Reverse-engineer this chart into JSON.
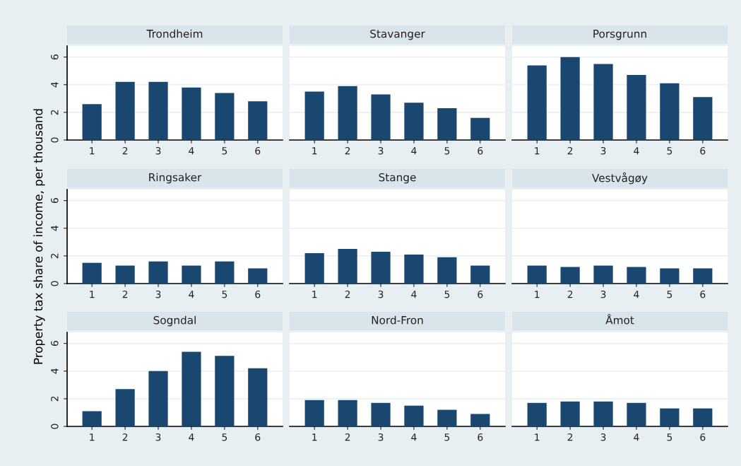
{
  "chart_data": [
    {
      "type": "bar",
      "title": "Trondheim",
      "categories": [
        "1",
        "2",
        "3",
        "4",
        "5",
        "6"
      ],
      "values": [
        2.6,
        4.2,
        4.2,
        3.8,
        3.4,
        2.8
      ],
      "color": "#1a476f",
      "ylim": [
        0,
        6.8
      ],
      "yticks": [
        0,
        2,
        4,
        6
      ],
      "grid": "y"
    },
    {
      "type": "bar",
      "title": "Stavanger",
      "categories": [
        "1",
        "2",
        "3",
        "4",
        "5",
        "6"
      ],
      "values": [
        3.5,
        3.9,
        3.3,
        2.7,
        2.3,
        1.6
      ],
      "color": "#1a476f",
      "ylim": [
        0,
        6.8
      ],
      "yticks": [
        0,
        2,
        4,
        6
      ],
      "grid": "y",
      "tick_labels": "x"
    },
    {
      "type": "bar",
      "title": "Porsgrunn",
      "categories": [
        "1",
        "2",
        "3",
        "4",
        "5",
        "6"
      ],
      "values": [
        5.4,
        6.0,
        5.5,
        4.7,
        4.1,
        3.1
      ],
      "color": "#1a476f",
      "ylim": [
        0,
        6.8
      ],
      "yticks": [
        0,
        2,
        4,
        6
      ],
      "grid": "y",
      "tick_labels": "x"
    },
    {
      "type": "bar",
      "title": "Ringsaker",
      "ylabel": "Property tax share of income, per thousand",
      "categories": [
        "1",
        "2",
        "3",
        "4",
        "5",
        "6"
      ],
      "values": [
        1.5,
        1.3,
        1.6,
        1.3,
        1.6,
        1.1
      ],
      "color": "#1a476f",
      "ylim": [
        0,
        6.8
      ],
      "yticks": [
        0,
        2,
        4,
        6
      ],
      "grid": "y"
    },
    {
      "type": "bar",
      "title": "Stange",
      "categories": [
        "1",
        "2",
        "3",
        "4",
        "5",
        "6"
      ],
      "values": [
        2.2,
        2.5,
        2.3,
        2.1,
        1.9,
        1.3
      ],
      "color": "#1a476f",
      "ylim": [
        0,
        6.8
      ],
      "yticks": [
        0,
        2,
        4,
        6
      ],
      "grid": "y",
      "tick_labels": "x"
    },
    {
      "type": "bar",
      "title": "Vestvågøy",
      "categories": [
        "1",
        "2",
        "3",
        "4",
        "5",
        "6"
      ],
      "values": [
        1.3,
        1.2,
        1.3,
        1.2,
        1.1,
        1.1
      ],
      "color": "#1a476f",
      "ylim": [
        0,
        6.8
      ],
      "yticks": [
        0,
        2,
        4,
        6
      ],
      "grid": "y",
      "tick_labels": "x"
    },
    {
      "type": "bar",
      "title": "Sogndal",
      "categories": [
        "1",
        "2",
        "3",
        "4",
        "5",
        "6"
      ],
      "values": [
        1.1,
        2.7,
        4.0,
        5.4,
        5.1,
        4.2
      ],
      "color": "#1a476f",
      "ylim": [
        0,
        6.8
      ],
      "yticks": [
        0,
        2,
        4,
        6
      ],
      "grid": "y"
    },
    {
      "type": "bar",
      "title": "Nord-Fron",
      "categories": [
        "1",
        "2",
        "3",
        "4",
        "5",
        "6"
      ],
      "values": [
        1.9,
        1.9,
        1.7,
        1.5,
        1.2,
        0.9
      ],
      "color": "#1a476f",
      "ylim": [
        0,
        6.8
      ],
      "yticks": [
        0,
        2,
        4,
        6
      ],
      "grid": "y",
      "tick_labels": "x"
    },
    {
      "type": "bar",
      "title": "Åmot",
      "categories": [
        "1",
        "2",
        "3",
        "4",
        "5",
        "6"
      ],
      "values": [
        1.7,
        1.8,
        1.8,
        1.7,
        1.3,
        1.3
      ],
      "color": "#1a476f",
      "ylim": [
        0,
        6.8
      ],
      "yticks": [
        0,
        2,
        4,
        6
      ],
      "grid": "y",
      "tick_labels": "x"
    }
  ]
}
